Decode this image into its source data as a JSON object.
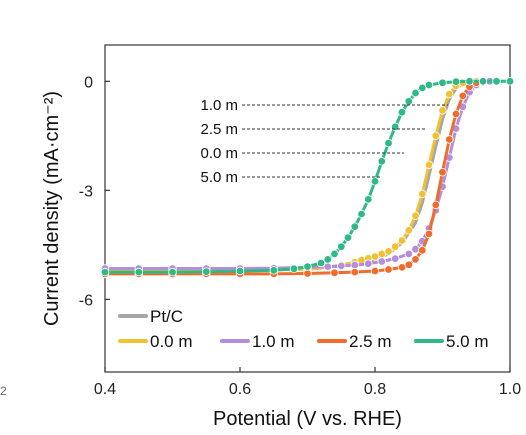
{
  "chart_data": {
    "type": "line",
    "xlabel": "Potential (V vs. RHE)",
    "ylabel": "Current density (mA·cm⁻²)",
    "xlim": [
      0.4,
      1.0
    ],
    "ylim": [
      -8.0,
      1.0
    ],
    "x_ticks": [
      "0.4",
      "0.6",
      "0.8",
      "1.0"
    ],
    "x_tick_values": [
      0.4,
      0.6,
      0.8,
      1.0
    ],
    "y_ticks": [
      "0",
      "-3",
      "-6"
    ],
    "y_tick_values": [
      0,
      -3,
      -6
    ],
    "grid": false,
    "legend_position": "bottom",
    "series": [
      {
        "name": "Pt/C",
        "color": "#a6a6a6",
        "marker": false,
        "x": [
          0.4,
          0.5,
          0.6,
          0.7,
          0.74,
          0.78,
          0.8,
          0.82,
          0.84,
          0.86,
          0.87,
          0.88,
          0.89,
          0.9,
          0.91,
          0.92,
          0.93,
          0.94,
          0.96
        ],
        "y": [
          -5.2,
          -5.2,
          -5.2,
          -5.15,
          -5.1,
          -5.0,
          -4.9,
          -4.75,
          -4.45,
          -3.9,
          -3.35,
          -2.6,
          -1.8,
          -1.05,
          -0.5,
          -0.2,
          -0.07,
          -0.02,
          0.0
        ]
      },
      {
        "name": "0.0 m",
        "color": "#f0c233",
        "marker": true,
        "x": [
          0.4,
          0.45,
          0.5,
          0.55,
          0.6,
          0.65,
          0.7,
          0.73,
          0.75,
          0.77,
          0.78,
          0.79,
          0.8,
          0.81,
          0.82,
          0.83,
          0.84,
          0.85,
          0.86,
          0.87,
          0.88,
          0.89,
          0.9,
          0.91,
          0.92,
          0.93,
          0.95
        ],
        "y": [
          -5.22,
          -5.22,
          -5.21,
          -5.2,
          -5.2,
          -5.19,
          -5.17,
          -5.12,
          -5.05,
          -4.98,
          -4.92,
          -4.87,
          -4.82,
          -4.75,
          -4.68,
          -4.55,
          -4.38,
          -4.1,
          -3.7,
          -3.1,
          -2.3,
          -1.5,
          -0.8,
          -0.35,
          -0.12,
          -0.04,
          0.0
        ]
      },
      {
        "name": "1.0 m",
        "color": "#b48ed8",
        "marker": true,
        "x": [
          0.4,
          0.45,
          0.5,
          0.55,
          0.6,
          0.65,
          0.7,
          0.73,
          0.75,
          0.77,
          0.79,
          0.81,
          0.83,
          0.85,
          0.86,
          0.87,
          0.88,
          0.89,
          0.9,
          0.91,
          0.92,
          0.93,
          0.94,
          0.95,
          0.96,
          0.97
        ],
        "y": [
          -5.15,
          -5.15,
          -5.15,
          -5.15,
          -5.15,
          -5.14,
          -5.12,
          -5.1,
          -5.08,
          -5.06,
          -5.02,
          -4.96,
          -4.88,
          -4.75,
          -4.62,
          -4.4,
          -4.05,
          -3.55,
          -2.9,
          -2.1,
          -1.3,
          -0.7,
          -0.3,
          -0.1,
          -0.03,
          0.0
        ]
      },
      {
        "name": "2.5 m",
        "color": "#ef6c2a",
        "marker": true,
        "x": [
          0.4,
          0.45,
          0.5,
          0.55,
          0.6,
          0.65,
          0.7,
          0.74,
          0.77,
          0.8,
          0.82,
          0.84,
          0.85,
          0.86,
          0.87,
          0.88,
          0.89,
          0.9,
          0.91,
          0.92,
          0.93,
          0.94,
          0.95,
          0.96
        ],
        "y": [
          -5.3,
          -5.3,
          -5.3,
          -5.3,
          -5.3,
          -5.3,
          -5.29,
          -5.27,
          -5.25,
          -5.22,
          -5.18,
          -5.12,
          -5.05,
          -4.9,
          -4.65,
          -4.2,
          -3.4,
          -2.5,
          -1.6,
          -0.9,
          -0.4,
          -0.15,
          -0.04,
          0.0
        ]
      },
      {
        "name": "5.0 m",
        "color": "#2fb888",
        "marker": true,
        "x": [
          0.4,
          0.45,
          0.5,
          0.55,
          0.6,
          0.65,
          0.68,
          0.7,
          0.72,
          0.73,
          0.74,
          0.75,
          0.76,
          0.77,
          0.78,
          0.79,
          0.8,
          0.81,
          0.82,
          0.83,
          0.84,
          0.85,
          0.86,
          0.87,
          0.88,
          0.9,
          0.92,
          0.94,
          0.96,
          0.98,
          1.0
        ],
        "y": [
          -5.25,
          -5.25,
          -5.25,
          -5.24,
          -5.22,
          -5.2,
          -5.16,
          -5.1,
          -5.0,
          -4.9,
          -4.75,
          -4.55,
          -4.3,
          -4.0,
          -3.65,
          -3.25,
          -2.75,
          -2.2,
          -1.7,
          -1.25,
          -0.85,
          -0.55,
          -0.32,
          -0.18,
          -0.1,
          -0.04,
          -0.01,
          0.0,
          0.0,
          0.0,
          0.0
        ]
      }
    ],
    "annotations": [
      {
        "label": "1.0 m",
        "y": -0.55
      },
      {
        "label": "2.5 m",
        "y": -1.2
      },
      {
        "label": "0.0 m",
        "y": -1.9
      },
      {
        "label": "5.0 m",
        "y": -2.55
      }
    ],
    "stray_text": "2"
  }
}
